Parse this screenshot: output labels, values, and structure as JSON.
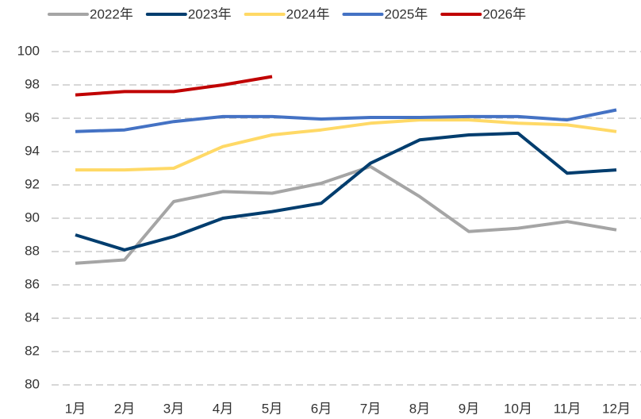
{
  "chart_data": {
    "type": "line",
    "categories": [
      "1月",
      "2月",
      "3月",
      "4月",
      "5月",
      "6月",
      "7月",
      "8月",
      "9月",
      "10月",
      "11月",
      "12月"
    ],
    "series": [
      {
        "name": "2022年",
        "color": "#a5a5a5",
        "values": [
          87.3,
          87.5,
          91.0,
          91.6,
          91.5,
          92.1,
          93.1,
          91.3,
          89.2,
          89.4,
          89.8,
          89.3
        ]
      },
      {
        "name": "2023年",
        "color": "#003d6e",
        "values": [
          89.0,
          88.1,
          88.9,
          90.0,
          90.4,
          90.9,
          93.3,
          94.7,
          95.0,
          95.1,
          92.7,
          92.9
        ]
      },
      {
        "name": "2024年",
        "color": "#ffd966",
        "values": [
          92.9,
          92.9,
          93.0,
          94.3,
          95.0,
          95.3,
          95.7,
          95.9,
          95.9,
          95.7,
          95.6,
          95.2
        ]
      },
      {
        "name": "2025年",
        "color": "#4472c4",
        "values": [
          95.2,
          95.3,
          95.8,
          96.1,
          96.1,
          95.95,
          96.05,
          96.05,
          96.1,
          96.1,
          95.9,
          96.5
        ]
      },
      {
        "name": "2026年",
        "color": "#c00000",
        "values": [
          97.4,
          97.6,
          97.6,
          98.0,
          98.5,
          null,
          null,
          null,
          null,
          null,
          null,
          null
        ]
      }
    ],
    "ylim": [
      80,
      100
    ],
    "yticks": [
      80,
      82,
      84,
      86,
      88,
      90,
      92,
      94,
      96,
      98,
      100
    ],
    "grid": true,
    "legend": "top"
  }
}
